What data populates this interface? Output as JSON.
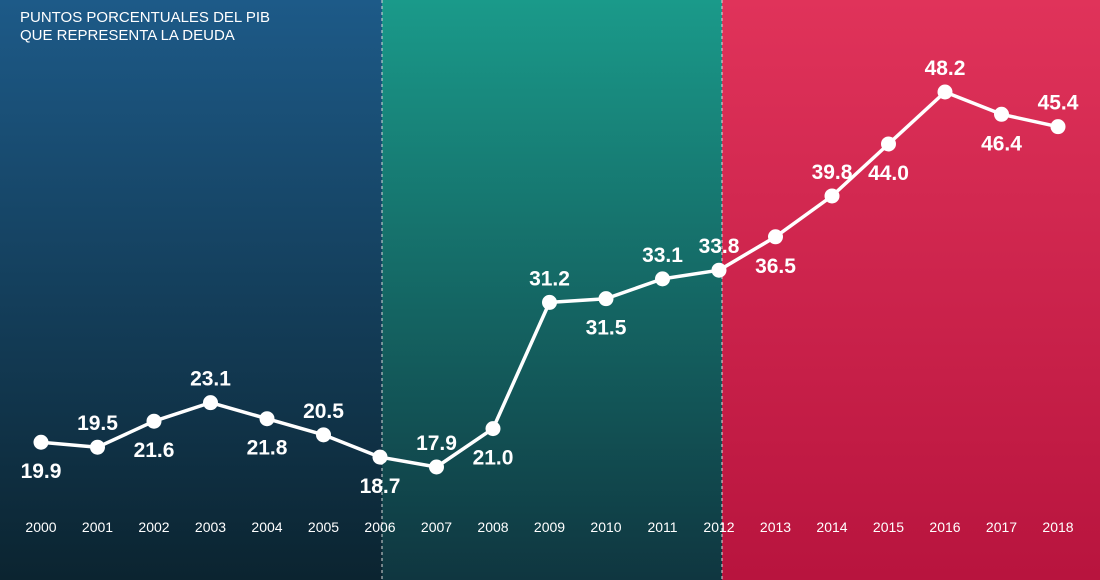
{
  "header": {
    "title_line1": "PUNTOS PORCENTUALES DEL PIB",
    "title_line2": "QUE REPRESENTA LA DEUDA"
  },
  "colors": {
    "panel_left_top": "#1d5a88",
    "panel_left_bottom": "#0b2430",
    "panel_mid_top": "#1a9a8a",
    "panel_mid_bottom": "#0f3640",
    "panel_right_top": "#e0335a",
    "panel_right_bottom": "#b8143e",
    "line": "#ffffff",
    "divider": "#d8d8d8"
  },
  "chart_data": {
    "type": "line",
    "title": "PUNTOS PORCENTUALES DEL PIB QUE REPRESENTA LA DEUDA",
    "xlabel": "",
    "ylabel": "",
    "x": [
      "2000",
      "2001",
      "2002",
      "2003",
      "2004",
      "2005",
      "2006",
      "2007",
      "2008",
      "2009",
      "2010",
      "2011",
      "2012",
      "2013",
      "2014",
      "2015",
      "2016",
      "2017",
      "2018"
    ],
    "values": [
      19.9,
      19.5,
      21.6,
      23.1,
      21.8,
      20.5,
      18.7,
      17.9,
      21.0,
      31.2,
      31.5,
      33.1,
      33.8,
      36.5,
      39.8,
      44.0,
      48.2,
      46.4,
      45.4
    ],
    "labels": [
      "19.9",
      "19.5",
      "21.6",
      "23.1",
      "21.8",
      "20.5",
      "18.7",
      "17.9",
      "21.0",
      "31.2",
      "31.5",
      "33.1",
      "33.8",
      "36.5",
      "39.8",
      "44.0",
      "48.2",
      "46.4",
      "45.4"
    ],
    "label_position": [
      "below",
      "above",
      "below",
      "above",
      "below",
      "above",
      "below",
      "above",
      "below",
      "above",
      "below",
      "above",
      "above",
      "below",
      "above",
      "below",
      "above",
      "below",
      "above"
    ],
    "ylim": [
      16,
      50
    ],
    "grid": false,
    "legend": "none",
    "period_dividers_after": [
      "2006",
      "2012"
    ]
  }
}
